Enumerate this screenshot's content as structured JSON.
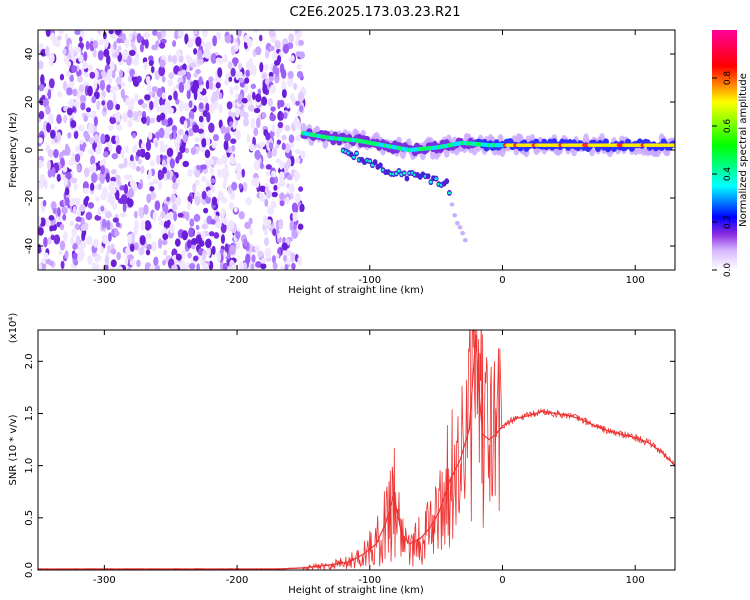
{
  "title": "C2E6.2025.173.03.23.R21",
  "chart_data": [
    {
      "type": "heatmap",
      "xlabel": "Height of straight line (km)",
      "ylabel": "Frequency (Hz)",
      "xlim": [
        -350,
        130
      ],
      "ylim": [
        -50,
        50
      ],
      "x_ticks": [
        -300,
        -200,
        -100,
        0,
        100
      ],
      "y_ticks": [
        -40,
        -20,
        0,
        20,
        40
      ],
      "colorbar": {
        "label": "Normalized spectral amplitude",
        "range": [
          0,
          1
        ],
        "ticks": [
          "0.0",
          "0.2",
          "0.4",
          "0.6",
          "0.8"
        ],
        "tick_values": [
          0.0,
          0.2,
          0.4,
          0.6,
          0.8
        ],
        "colors": [
          "#ffffff",
          "#8a2be2",
          "#0000ff",
          "#00ffff",
          "#00ff00",
          "#ffff00",
          "#ff0000",
          "#ff0099"
        ]
      },
      "features": {
        "noise_region_x": [
          -350,
          -150
        ],
        "main_trace": [
          [
            -150,
            7
          ],
          [
            -130,
            5
          ],
          [
            -110,
            4
          ],
          [
            -90,
            2
          ],
          [
            -70,
            0
          ],
          [
            -50,
            1
          ],
          [
            -30,
            3
          ],
          [
            -10,
            2
          ],
          [
            10,
            2
          ],
          [
            50,
            2
          ],
          [
            90,
            2
          ],
          [
            130,
            2
          ]
        ],
        "secondary_trace": [
          [
            -120,
            0
          ],
          [
            -100,
            -5
          ],
          [
            -80,
            -10
          ],
          [
            -60,
            -11
          ],
          [
            -42,
            -14
          ],
          [
            -35,
            -30
          ],
          [
            -28,
            -38
          ]
        ]
      }
    },
    {
      "type": "line",
      "xlabel": "Height of straight line (km)",
      "ylabel": "SNR (10 * v/v)",
      "y_multiplier": "(x10⁴)",
      "xlim": [
        -350,
        130
      ],
      "ylim": [
        0,
        2.3
      ],
      "x_ticks": [
        -300,
        -200,
        -100,
        0,
        100
      ],
      "y_ticks": [
        "0.0",
        "0.5",
        "1.0",
        "1.5",
        "2.0"
      ],
      "y_tick_values": [
        0.0,
        0.5,
        1.0,
        1.5,
        2.0
      ],
      "line_color": "#ee3333",
      "series": [
        {
          "x": [
            -350,
            -300,
            -250,
            -200,
            -170,
            -150,
            -130,
            -115,
            -105,
            -95,
            -88,
            -82,
            -76,
            -70,
            -62,
            -55,
            -48,
            -40,
            -32,
            -25,
            -20,
            -18,
            -15,
            -10,
            -5,
            0,
            10,
            20,
            30,
            40,
            50,
            60,
            70,
            80,
            90,
            100,
            110,
            120,
            130
          ],
          "y": [
            0.01,
            0.01,
            0.01,
            0.01,
            0.01,
            0.02,
            0.05,
            0.08,
            0.15,
            0.25,
            0.45,
            0.72,
            0.35,
            0.25,
            0.3,
            0.4,
            0.55,
            0.85,
            1.05,
            1.35,
            2.25,
            1.75,
            1.3,
            1.25,
            1.3,
            1.38,
            1.45,
            1.48,
            1.52,
            1.5,
            1.48,
            1.44,
            1.38,
            1.33,
            1.3,
            1.27,
            1.22,
            1.13,
            1.0
          ]
        }
      ]
    }
  ]
}
